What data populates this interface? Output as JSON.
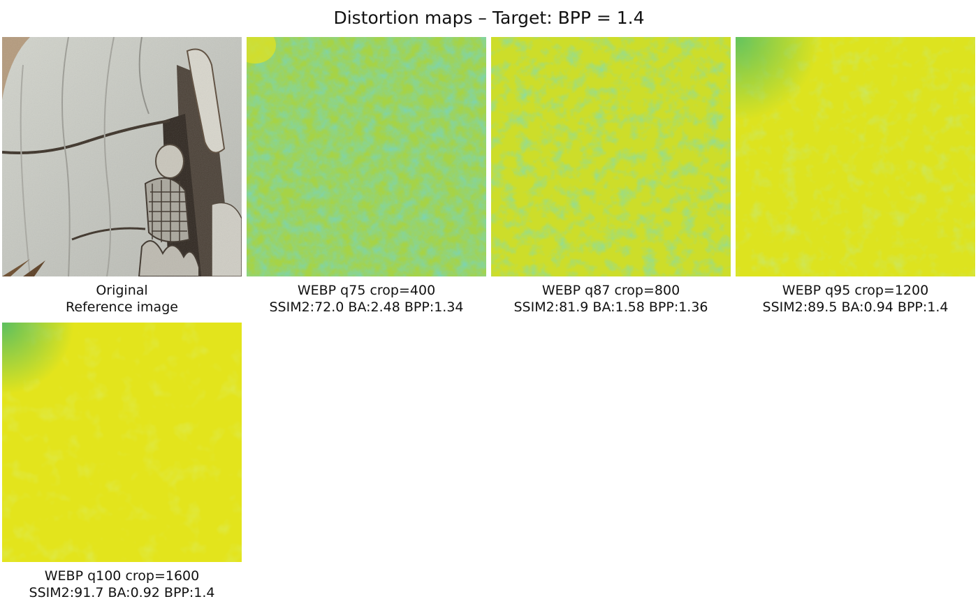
{
  "title": "Distortion maps – Target: BPP = 1.4",
  "panels": [
    {
      "kind": "reference",
      "line1": "Original",
      "line2": "Reference image"
    },
    {
      "kind": "distortion-map",
      "line1": "WEBP q75 crop=400",
      "line2": "SSIM2:72.0 BA:2.48 BPP:1.34"
    },
    {
      "kind": "distortion-map",
      "line1": "WEBP q87 crop=800",
      "line2": "SSIM2:81.9 BA:1.58 BPP:1.36"
    },
    {
      "kind": "distortion-map",
      "line1": "WEBP q95 crop=1200",
      "line2": "SSIM2:89.5 BA:0.94 BPP:1.4"
    },
    {
      "kind": "distortion-map",
      "line1": "WEBP q100 crop=1600",
      "line2": "SSIM2:91.7 BA:0.92 BPP:1.4"
    }
  ],
  "colors": {
    "yellow": "#e3e31a",
    "green": "#2db880",
    "stone": "#c9cbc4",
    "crack": "#3a3026"
  }
}
